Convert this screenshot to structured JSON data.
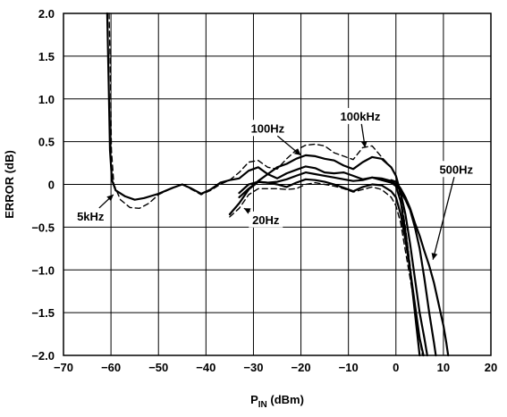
{
  "chart_data": {
    "type": "line",
    "xlabel": {
      "main": "P",
      "sub": "IN",
      "unit": " (dBm)"
    },
    "ylabel": "ERROR (dB)",
    "xlim": [
      -70,
      20
    ],
    "ylim": [
      -2.0,
      2.0
    ],
    "grid": true,
    "x_ticks": [
      {
        "value": -70,
        "label": "−70"
      },
      {
        "value": -60,
        "label": "−60"
      },
      {
        "value": -50,
        "label": "−50"
      },
      {
        "value": -40,
        "label": "−40"
      },
      {
        "value": -30,
        "label": "−30"
      },
      {
        "value": -20,
        "label": "−20"
      },
      {
        "value": -10,
        "label": "−10"
      },
      {
        "value": 0,
        "label": "0"
      },
      {
        "value": 10,
        "label": "10"
      },
      {
        "value": 20,
        "label": "20"
      }
    ],
    "y_ticks": [
      {
        "value": 2.0,
        "label": "2.0"
      },
      {
        "value": 1.5,
        "label": "1.5"
      },
      {
        "value": 1.0,
        "label": "1.0"
      },
      {
        "value": 0.5,
        "label": "0.5"
      },
      {
        "value": 0,
        "label": "0"
      },
      {
        "value": -0.5,
        "label": "−0.5"
      },
      {
        "value": -1.0,
        "label": "−1.0"
      },
      {
        "value": -1.5,
        "label": "−1.5"
      },
      {
        "value": -2.0,
        "label": "−2.0"
      }
    ],
    "series": [
      {
        "name": "5kHz",
        "style": "solid",
        "width": 2.2,
        "points": [
          [
            -60.8,
            2.0
          ],
          [
            -60.5,
            1.2
          ],
          [
            -60.2,
            0.4
          ],
          [
            -59.8,
            0.05
          ],
          [
            -59,
            -0.07
          ],
          [
            -57,
            -0.14
          ],
          [
            -55,
            -0.18
          ],
          [
            -53,
            -0.16
          ],
          [
            -50,
            -0.11
          ],
          [
            -47,
            -0.04
          ],
          [
            -45,
            0.0
          ],
          [
            -43,
            -0.05
          ],
          [
            -41,
            -0.11
          ],
          [
            -39,
            -0.06
          ],
          [
            -37,
            0.02
          ],
          [
            -35,
            0.05
          ],
          [
            -33,
            0.07
          ],
          [
            -31,
            0.16
          ],
          [
            -29,
            0.2
          ],
          [
            -27,
            0.12
          ],
          [
            -25,
            0.07
          ],
          [
            -23,
            0.13
          ],
          [
            -21,
            0.17
          ],
          [
            -19,
            0.21
          ],
          [
            -17,
            0.19
          ],
          [
            -15,
            0.14
          ],
          [
            -13,
            0.13
          ],
          [
            -11,
            0.14
          ],
          [
            -9,
            0.1
          ],
          [
            -7,
            0.06
          ],
          [
            -5,
            0.08
          ],
          [
            -3,
            0.05
          ],
          [
            -1,
            0.02
          ],
          [
            0,
            -0.02
          ],
          [
            1,
            -0.2
          ],
          [
            2,
            -0.55
          ],
          [
            3,
            -1.0
          ],
          [
            4,
            -1.5
          ],
          [
            5,
            -2.0
          ]
        ]
      },
      {
        "name": "dashed",
        "style": "dashed",
        "width": 1.4,
        "points": [
          [
            -60.4,
            2.0
          ],
          [
            -60.1,
            1.2
          ],
          [
            -59.9,
            0.4
          ],
          [
            -59.4,
            0.0
          ],
          [
            -58,
            -0.18
          ],
          [
            -56,
            -0.27
          ],
          [
            -54,
            -0.28
          ],
          [
            -52,
            -0.22
          ],
          [
            -50,
            -0.12
          ],
          [
            -47,
            -0.04
          ],
          [
            -45,
            0.0
          ],
          [
            -43,
            -0.06
          ],
          [
            -41,
            -0.12
          ],
          [
            -39,
            -0.07
          ],
          [
            -37,
            0.0
          ],
          [
            -35,
            0.05
          ],
          [
            -33,
            0.14
          ],
          [
            -31,
            0.26
          ],
          [
            -29,
            0.28
          ],
          [
            -27,
            0.2
          ],
          [
            -25,
            0.18
          ],
          [
            -23,
            0.3
          ],
          [
            -21,
            0.4
          ],
          [
            -19,
            0.46
          ],
          [
            -17,
            0.47
          ],
          [
            -15,
            0.45
          ],
          [
            -13,
            0.37
          ],
          [
            -11,
            0.33
          ],
          [
            -9,
            0.29
          ],
          [
            -7,
            0.43
          ],
          [
            -5,
            0.45
          ],
          [
            -3,
            0.32
          ],
          [
            -1,
            0.2
          ],
          [
            0,
            0.1
          ],
          [
            1,
            -0.15
          ],
          [
            2,
            -0.5
          ],
          [
            3,
            -0.95
          ],
          [
            4,
            -1.45
          ],
          [
            5,
            -2.0
          ]
        ]
      },
      {
        "name": "",
        "style": "solid",
        "width": 2.2,
        "points": [
          [
            -35,
            -0.35
          ],
          [
            -33,
            -0.22
          ],
          [
            -31,
            -0.06
          ],
          [
            -29,
            0.03
          ],
          [
            -27,
            0.02
          ],
          [
            -25,
            0.0
          ],
          [
            -23,
            -0.03
          ],
          [
            -21,
            0.02
          ],
          [
            -19,
            0.06
          ],
          [
            -17,
            0.05
          ],
          [
            -15,
            0.03
          ],
          [
            -13,
            0.0
          ],
          [
            -11,
            -0.04
          ],
          [
            -9,
            -0.08
          ],
          [
            -7,
            -0.03
          ],
          [
            -5,
            0.0
          ],
          [
            -3,
            -0.01
          ],
          [
            -1,
            -0.08
          ],
          [
            0,
            -0.15
          ],
          [
            1,
            -0.35
          ],
          [
            2,
            -0.65
          ],
          [
            3,
            -1.0
          ],
          [
            4,
            -1.4
          ],
          [
            5,
            -1.8
          ],
          [
            5.8,
            -2.0
          ]
        ]
      },
      {
        "name": "20Hz",
        "style": "dashed",
        "width": 1.4,
        "points": [
          [
            -35,
            -0.38
          ],
          [
            -33,
            -0.28
          ],
          [
            -31,
            -0.12
          ],
          [
            -29,
            -0.05
          ],
          [
            -27,
            -0.05
          ],
          [
            -25,
            -0.05
          ],
          [
            -23,
            -0.06
          ],
          [
            -21,
            -0.05
          ],
          [
            -19,
            0.0
          ],
          [
            -17,
            0.02
          ],
          [
            -15,
            0.0
          ],
          [
            -13,
            -0.02
          ],
          [
            -11,
            -0.05
          ],
          [
            -9,
            -0.09
          ],
          [
            -7,
            -0.06
          ],
          [
            -5,
            -0.03
          ],
          [
            -3,
            -0.06
          ],
          [
            -1,
            -0.15
          ],
          [
            0,
            -0.25
          ],
          [
            1,
            -0.45
          ],
          [
            2,
            -0.78
          ],
          [
            3,
            -1.1
          ],
          [
            4,
            -1.45
          ],
          [
            5,
            -1.8
          ],
          [
            5.6,
            -2.0
          ]
        ]
      },
      {
        "name": "100Hz",
        "style": "solid",
        "width": 2.2,
        "points": [
          [
            -33,
            -0.15
          ],
          [
            -31,
            -0.05
          ],
          [
            -29,
            0.04
          ],
          [
            -27,
            0.12
          ],
          [
            -25,
            0.2
          ],
          [
            -23,
            0.24
          ],
          [
            -21,
            0.3
          ],
          [
            -19,
            0.34
          ],
          [
            -17,
            0.33
          ],
          [
            -15,
            0.3
          ],
          [
            -13,
            0.28
          ],
          [
            -11,
            0.22
          ],
          [
            -9,
            0.18
          ],
          [
            -7,
            0.26
          ],
          [
            -5,
            0.32
          ],
          [
            -3,
            0.3
          ],
          [
            -1,
            0.2
          ],
          [
            0,
            0.1
          ],
          [
            1,
            -0.1
          ],
          [
            2,
            -0.35
          ],
          [
            3,
            -0.7
          ],
          [
            4,
            -1.1
          ],
          [
            5,
            -1.5
          ],
          [
            6,
            -1.8
          ],
          [
            6.6,
            -2.0
          ]
        ]
      },
      {
        "name": "100kHz",
        "style": "solid",
        "width": 2.2,
        "points": [
          [
            -33,
            -0.1
          ],
          [
            -31,
            0.0
          ],
          [
            -29,
            0.03
          ],
          [
            -27,
            0.02
          ],
          [
            -25,
            0.03
          ],
          [
            -23,
            0.06
          ],
          [
            -21,
            0.1
          ],
          [
            -19,
            0.14
          ],
          [
            -17,
            0.12
          ],
          [
            -15,
            0.1
          ],
          [
            -13,
            0.08
          ],
          [
            -11,
            0.06
          ],
          [
            -9,
            0.04
          ],
          [
            -7,
            0.05
          ],
          [
            -5,
            0.08
          ],
          [
            -3,
            0.07
          ],
          [
            -1,
            0.04
          ],
          [
            0,
            0.0
          ],
          [
            1,
            -0.08
          ],
          [
            2,
            -0.18
          ],
          [
            3,
            -0.3
          ],
          [
            4,
            -0.5
          ],
          [
            5,
            -0.75
          ],
          [
            6,
            -1.1
          ],
          [
            7,
            -1.5
          ],
          [
            8,
            -1.85
          ],
          [
            8.4,
            -2.0
          ]
        ]
      },
      {
        "name": "500Hz",
        "style": "solid",
        "width": 2.2,
        "points": [
          [
            -1,
            0.05
          ],
          [
            0,
            0.03
          ],
          [
            1,
            -0.05
          ],
          [
            2,
            -0.15
          ],
          [
            3,
            -0.28
          ],
          [
            4,
            -0.45
          ],
          [
            5,
            -0.6
          ],
          [
            6,
            -0.78
          ],
          [
            7,
            -0.95
          ],
          [
            8,
            -1.15
          ],
          [
            9,
            -1.4
          ],
          [
            10,
            -1.65
          ],
          [
            10.6,
            -1.85
          ],
          [
            11,
            -2.0
          ]
        ]
      }
    ],
    "annotations": [
      {
        "text": "5kHz",
        "x": -64.3,
        "y": -0.37,
        "ptr_to": [
          -59.5,
          -0.12
        ]
      },
      {
        "text": "100Hz",
        "x": -27,
        "y": 0.66,
        "ptr_to": [
          -20,
          0.34
        ]
      },
      {
        "text": "100kHz",
        "x": -7.5,
        "y": 0.8,
        "ptr_to": [
          -6.5,
          0.43
        ]
      },
      {
        "text": "500Hz",
        "x": 12.7,
        "y": 0.18,
        "ptr_to": [
          7.8,
          -0.88
        ]
      },
      {
        "text": "20Hz",
        "x": -27.4,
        "y": -0.41,
        "ptr_to": [
          -32,
          -0.28
        ]
      }
    ]
  }
}
